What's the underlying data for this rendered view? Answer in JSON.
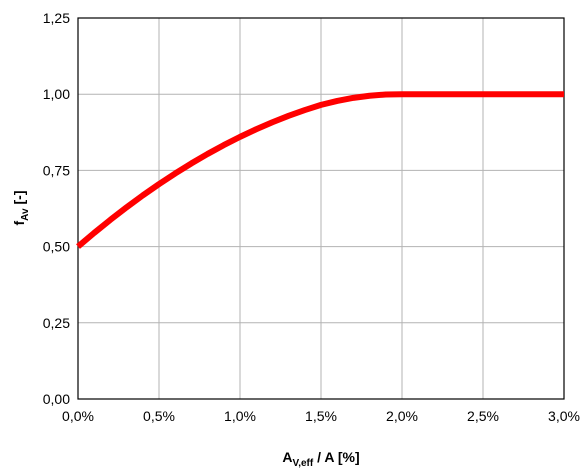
{
  "chart_data": {
    "type": "line",
    "xlabel": {
      "main": "A",
      "sub": "V,eff",
      "rest": " / A [%]"
    },
    "ylabel": {
      "main": "f",
      "sub": "Av",
      "rest": " [-]"
    },
    "xlim": [
      0,
      3.0
    ],
    "ylim": [
      0,
      1.25
    ],
    "xticks": [
      0,
      0.5,
      1.0,
      1.5,
      2.0,
      2.5,
      3.0
    ],
    "yticks": [
      0,
      0.25,
      0.5,
      0.75,
      1.0,
      1.25
    ],
    "xtick_labels": [
      "0,0%",
      "0,5%",
      "1,0%",
      "1,5%",
      "2,0%",
      "2,5%",
      "3,0%"
    ],
    "ytick_labels": [
      "0,00",
      "0,25",
      "0,50",
      "0,75",
      "1,00",
      "1,25"
    ],
    "grid": true,
    "series": [
      {
        "color": "#ff0000",
        "x": [
          0,
          0.1,
          0.2,
          0.3,
          0.4,
          0.5,
          0.6,
          0.7,
          0.8,
          0.9,
          1.0,
          1.1,
          1.2,
          1.3,
          1.4,
          1.5,
          1.6,
          1.7,
          1.8,
          1.9,
          2.0,
          2.1,
          2.2,
          2.5,
          3.0
        ],
        "y": [
          0.5,
          0.545,
          0.588,
          0.629,
          0.668,
          0.705,
          0.74,
          0.773,
          0.804,
          0.833,
          0.86,
          0.885,
          0.908,
          0.929,
          0.948,
          0.965,
          0.978,
          0.988,
          0.995,
          0.999,
          1.0,
          1.0,
          1.0,
          1.0,
          1.0
        ]
      }
    ]
  }
}
